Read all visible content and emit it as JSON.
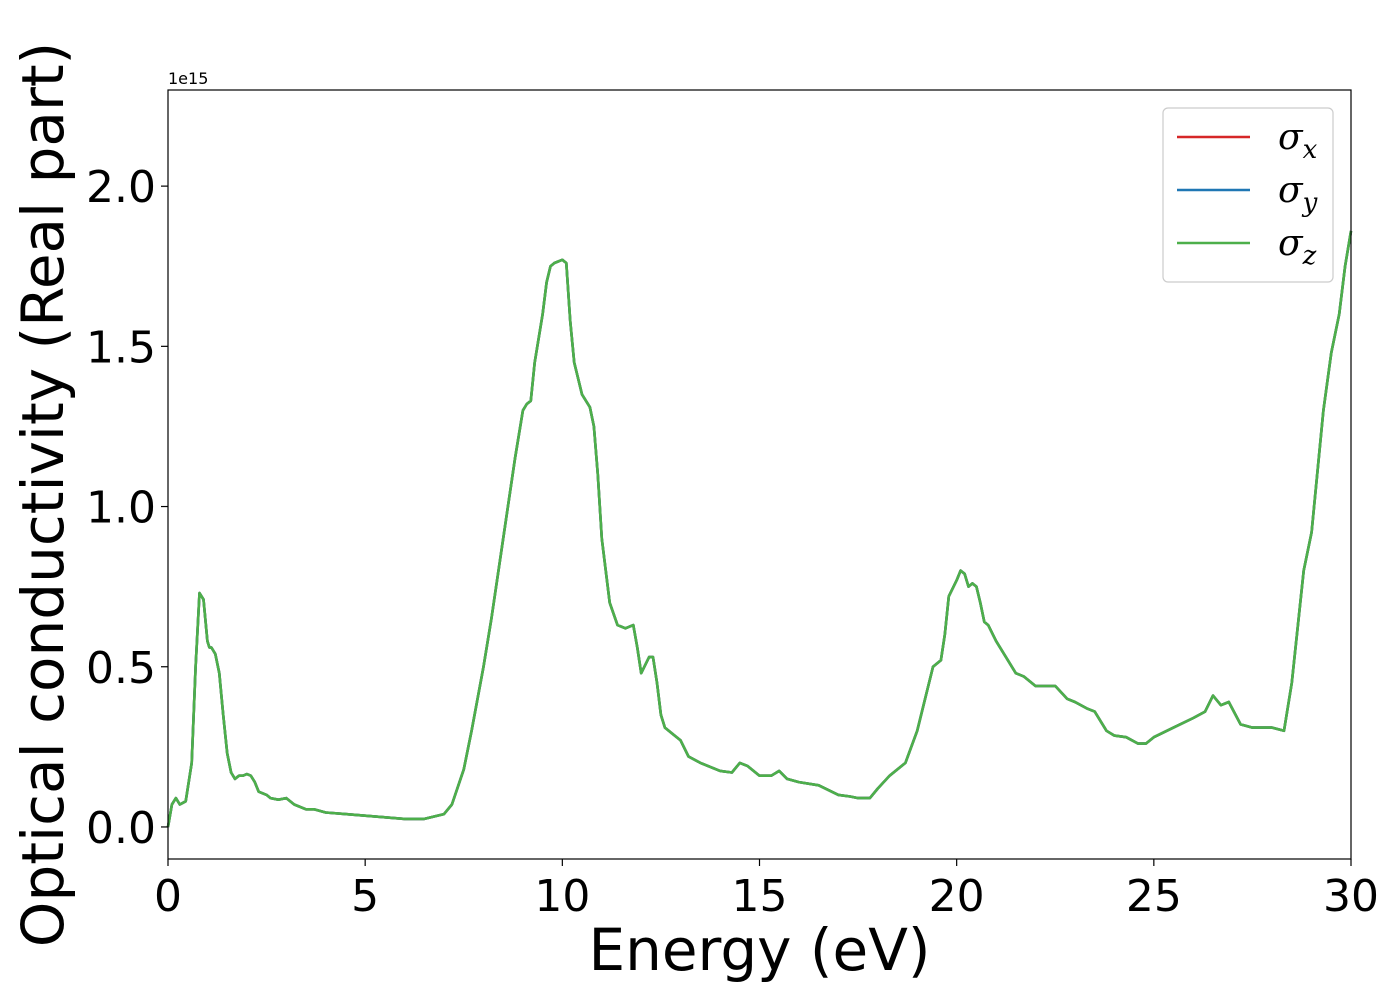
{
  "chart_data": {
    "type": "line",
    "xlabel": "Energy (eV)",
    "ylabel": "Optical conductivity (Real part)",
    "y_offset_label": "1e15",
    "xlim": [
      0,
      30
    ],
    "ylim": [
      -0.1,
      2.3
    ],
    "y_scale_factor": 1000000000000000.0,
    "x_ticks": [
      0,
      5,
      10,
      15,
      20,
      25,
      30
    ],
    "x_tick_labels": [
      "0",
      "5",
      "10",
      "15",
      "20",
      "25",
      "30"
    ],
    "y_ticks": [
      0.0,
      0.5,
      1.0,
      1.5,
      2.0
    ],
    "y_tick_labels": [
      "0.0",
      "0.5",
      "1.0",
      "1.5",
      "2.0"
    ],
    "grid": false,
    "legend_position": "top-right",
    "legend": [
      {
        "symbol": "σ",
        "subscript": "x",
        "color": "#d62728"
      },
      {
        "symbol": "σ",
        "subscript": "y",
        "color": "#1f77b4"
      },
      {
        "symbol": "σ",
        "subscript": "z",
        "color": "#4daf4a"
      }
    ],
    "x": [
      0,
      0.1,
      0.2,
      0.3,
      0.45,
      0.6,
      0.7,
      0.8,
      0.9,
      1.0,
      1.05,
      1.1,
      1.2,
      1.3,
      1.4,
      1.5,
      1.6,
      1.7,
      1.8,
      1.9,
      2.0,
      2.1,
      2.2,
      2.3,
      2.5,
      2.6,
      2.8,
      3.0,
      3.2,
      3.5,
      3.7,
      4.0,
      4.5,
      5.0,
      5.5,
      6.0,
      6.5,
      7.0,
      7.2,
      7.5,
      7.7,
      8.0,
      8.2,
      8.5,
      8.8,
      9.0,
      9.1,
      9.2,
      9.3,
      9.5,
      9.6,
      9.7,
      9.8,
      10.0,
      10.1,
      10.2,
      10.3,
      10.5,
      10.7,
      10.8,
      10.9,
      11.0,
      11.2,
      11.4,
      11.6,
      11.8,
      11.9,
      12.0,
      12.2,
      12.3,
      12.4,
      12.5,
      12.6,
      12.8,
      13.0,
      13.2,
      13.5,
      14.0,
      14.3,
      14.5,
      14.7,
      15.0,
      15.3,
      15.5,
      15.7,
      16.0,
      16.5,
      17.0,
      17.3,
      17.5,
      17.8,
      18.0,
      18.3,
      18.7,
      19.0,
      19.2,
      19.4,
      19.6,
      19.7,
      19.8,
      20.0,
      20.1,
      20.2,
      20.3,
      20.4,
      20.5,
      20.6,
      20.7,
      20.8,
      21.0,
      21.2,
      21.5,
      21.7,
      22.0,
      22.5,
      22.8,
      23.0,
      23.3,
      23.5,
      23.8,
      24.0,
      24.3,
      24.6,
      24.8,
      25.0,
      25.5,
      26.0,
      26.3,
      26.5,
      26.7,
      26.9,
      27.2,
      27.5,
      28.0,
      28.3,
      28.5,
      28.8,
      29.0,
      29.3,
      29.5,
      29.7,
      29.85,
      30.0
    ],
    "y": [
      0.0,
      0.07,
      0.09,
      0.07,
      0.08,
      0.2,
      0.5,
      0.73,
      0.71,
      0.58,
      0.56,
      0.56,
      0.54,
      0.48,
      0.35,
      0.23,
      0.17,
      0.15,
      0.16,
      0.16,
      0.165,
      0.16,
      0.14,
      0.11,
      0.1,
      0.09,
      0.085,
      0.09,
      0.07,
      0.055,
      0.055,
      0.045,
      0.04,
      0.035,
      0.03,
      0.025,
      0.025,
      0.04,
      0.07,
      0.18,
      0.3,
      0.5,
      0.65,
      0.9,
      1.15,
      1.3,
      1.32,
      1.33,
      1.45,
      1.6,
      1.7,
      1.75,
      1.76,
      1.77,
      1.76,
      1.58,
      1.45,
      1.35,
      1.31,
      1.25,
      1.1,
      0.9,
      0.7,
      0.63,
      0.62,
      0.63,
      0.56,
      0.48,
      0.53,
      0.53,
      0.45,
      0.35,
      0.31,
      0.29,
      0.27,
      0.22,
      0.2,
      0.175,
      0.17,
      0.2,
      0.19,
      0.16,
      0.16,
      0.175,
      0.15,
      0.14,
      0.13,
      0.1,
      0.095,
      0.09,
      0.09,
      0.12,
      0.16,
      0.2,
      0.3,
      0.4,
      0.5,
      0.52,
      0.6,
      0.72,
      0.77,
      0.8,
      0.79,
      0.75,
      0.76,
      0.75,
      0.7,
      0.64,
      0.63,
      0.58,
      0.54,
      0.48,
      0.47,
      0.44,
      0.44,
      0.4,
      0.39,
      0.37,
      0.36,
      0.3,
      0.285,
      0.28,
      0.26,
      0.26,
      0.28,
      0.31,
      0.34,
      0.36,
      0.41,
      0.38,
      0.39,
      0.32,
      0.31,
      0.31,
      0.3,
      0.45,
      0.8,
      0.92,
      1.3,
      1.48,
      1.6,
      1.75,
      1.86
    ]
  }
}
